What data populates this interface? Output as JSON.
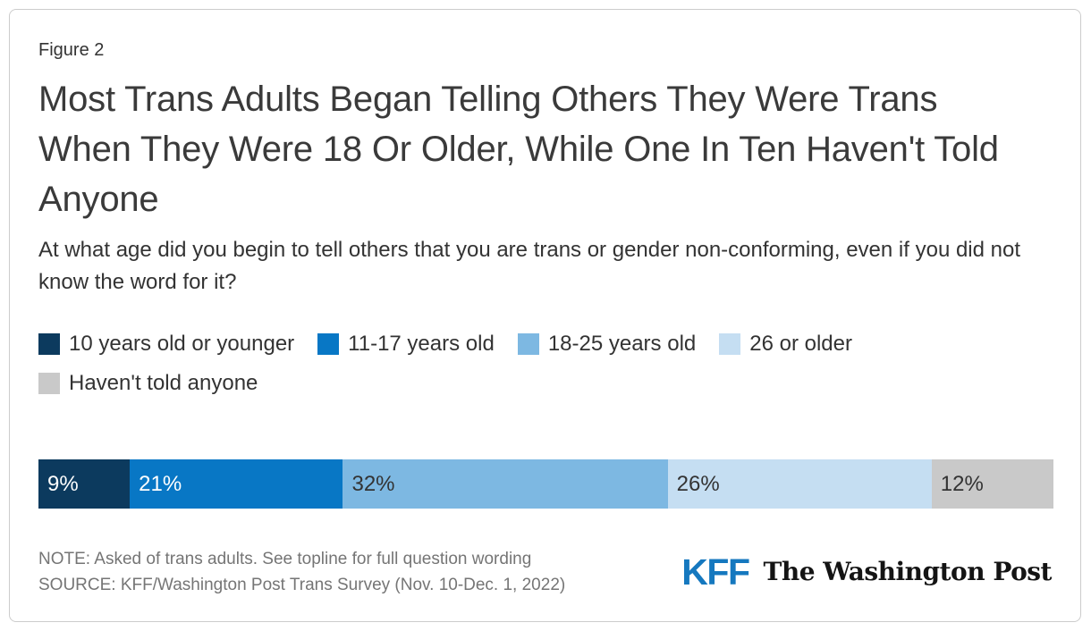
{
  "figure_label": "Figure 2",
  "title": "Most Trans Adults Began Telling Others They Were Trans When They Were 18 Or Older, While One In Ten Haven't Told Anyone",
  "subtitle": "At what age did you begin to tell others that you are trans or gender non-conforming, even if you did not know the word for it?",
  "chart_data": {
    "type": "bar",
    "variant": "horizontal-stacked",
    "title": "Most Trans Adults Began Telling Others They Were Trans When They Were 18 Or Older, While One In Ten Haven't Told Anyone",
    "question": "At what age did you begin to tell others that you are trans or gender non-conforming, even if you did not know the word for it?",
    "categories": [
      "10 years old or younger",
      "11-17 years old",
      "18-25 years old",
      "26 or older",
      "Haven't told anyone"
    ],
    "values": [
      9,
      21,
      32,
      26,
      12
    ],
    "data_labels": [
      "9%",
      "21%",
      "32%",
      "26%",
      "12%"
    ],
    "segment_colors": [
      "#0c3a5e",
      "#0877c5",
      "#7db8e2",
      "#c5def2",
      "#c9c9c9"
    ],
    "label_colors": [
      "#ffffff",
      "#ffffff",
      "#333333",
      "#333333",
      "#333333"
    ],
    "xlim": [
      0,
      100
    ],
    "legend_position": "top",
    "grid": false,
    "axes_shown": false
  },
  "legend": {
    "items": [
      {
        "label": "10 years old or younger",
        "color": "#0c3a5e"
      },
      {
        "label": "11-17 years old",
        "color": "#0877c5"
      },
      {
        "label": "18-25 years old",
        "color": "#7db8e2"
      },
      {
        "label": "26 or older",
        "color": "#c5def2"
      },
      {
        "label": "Haven't told anyone",
        "color": "#c9c9c9"
      }
    ]
  },
  "footer": {
    "note": "NOTE: Asked of trans adults. See topline for full question wording",
    "source": "SOURCE: KFF/Washington Post Trans Survey (Nov. 10-Dec. 1, 2022)",
    "kff_logo_text": "KFF",
    "wapo_logo_text": "The Washington Post"
  },
  "colors": {
    "card_border": "#cccccc",
    "title_text": "#3a3a3a",
    "body_text": "#333333",
    "note_text": "#757575",
    "kff_brand_blue": "#1578bf",
    "wapo_black": "#141414"
  }
}
